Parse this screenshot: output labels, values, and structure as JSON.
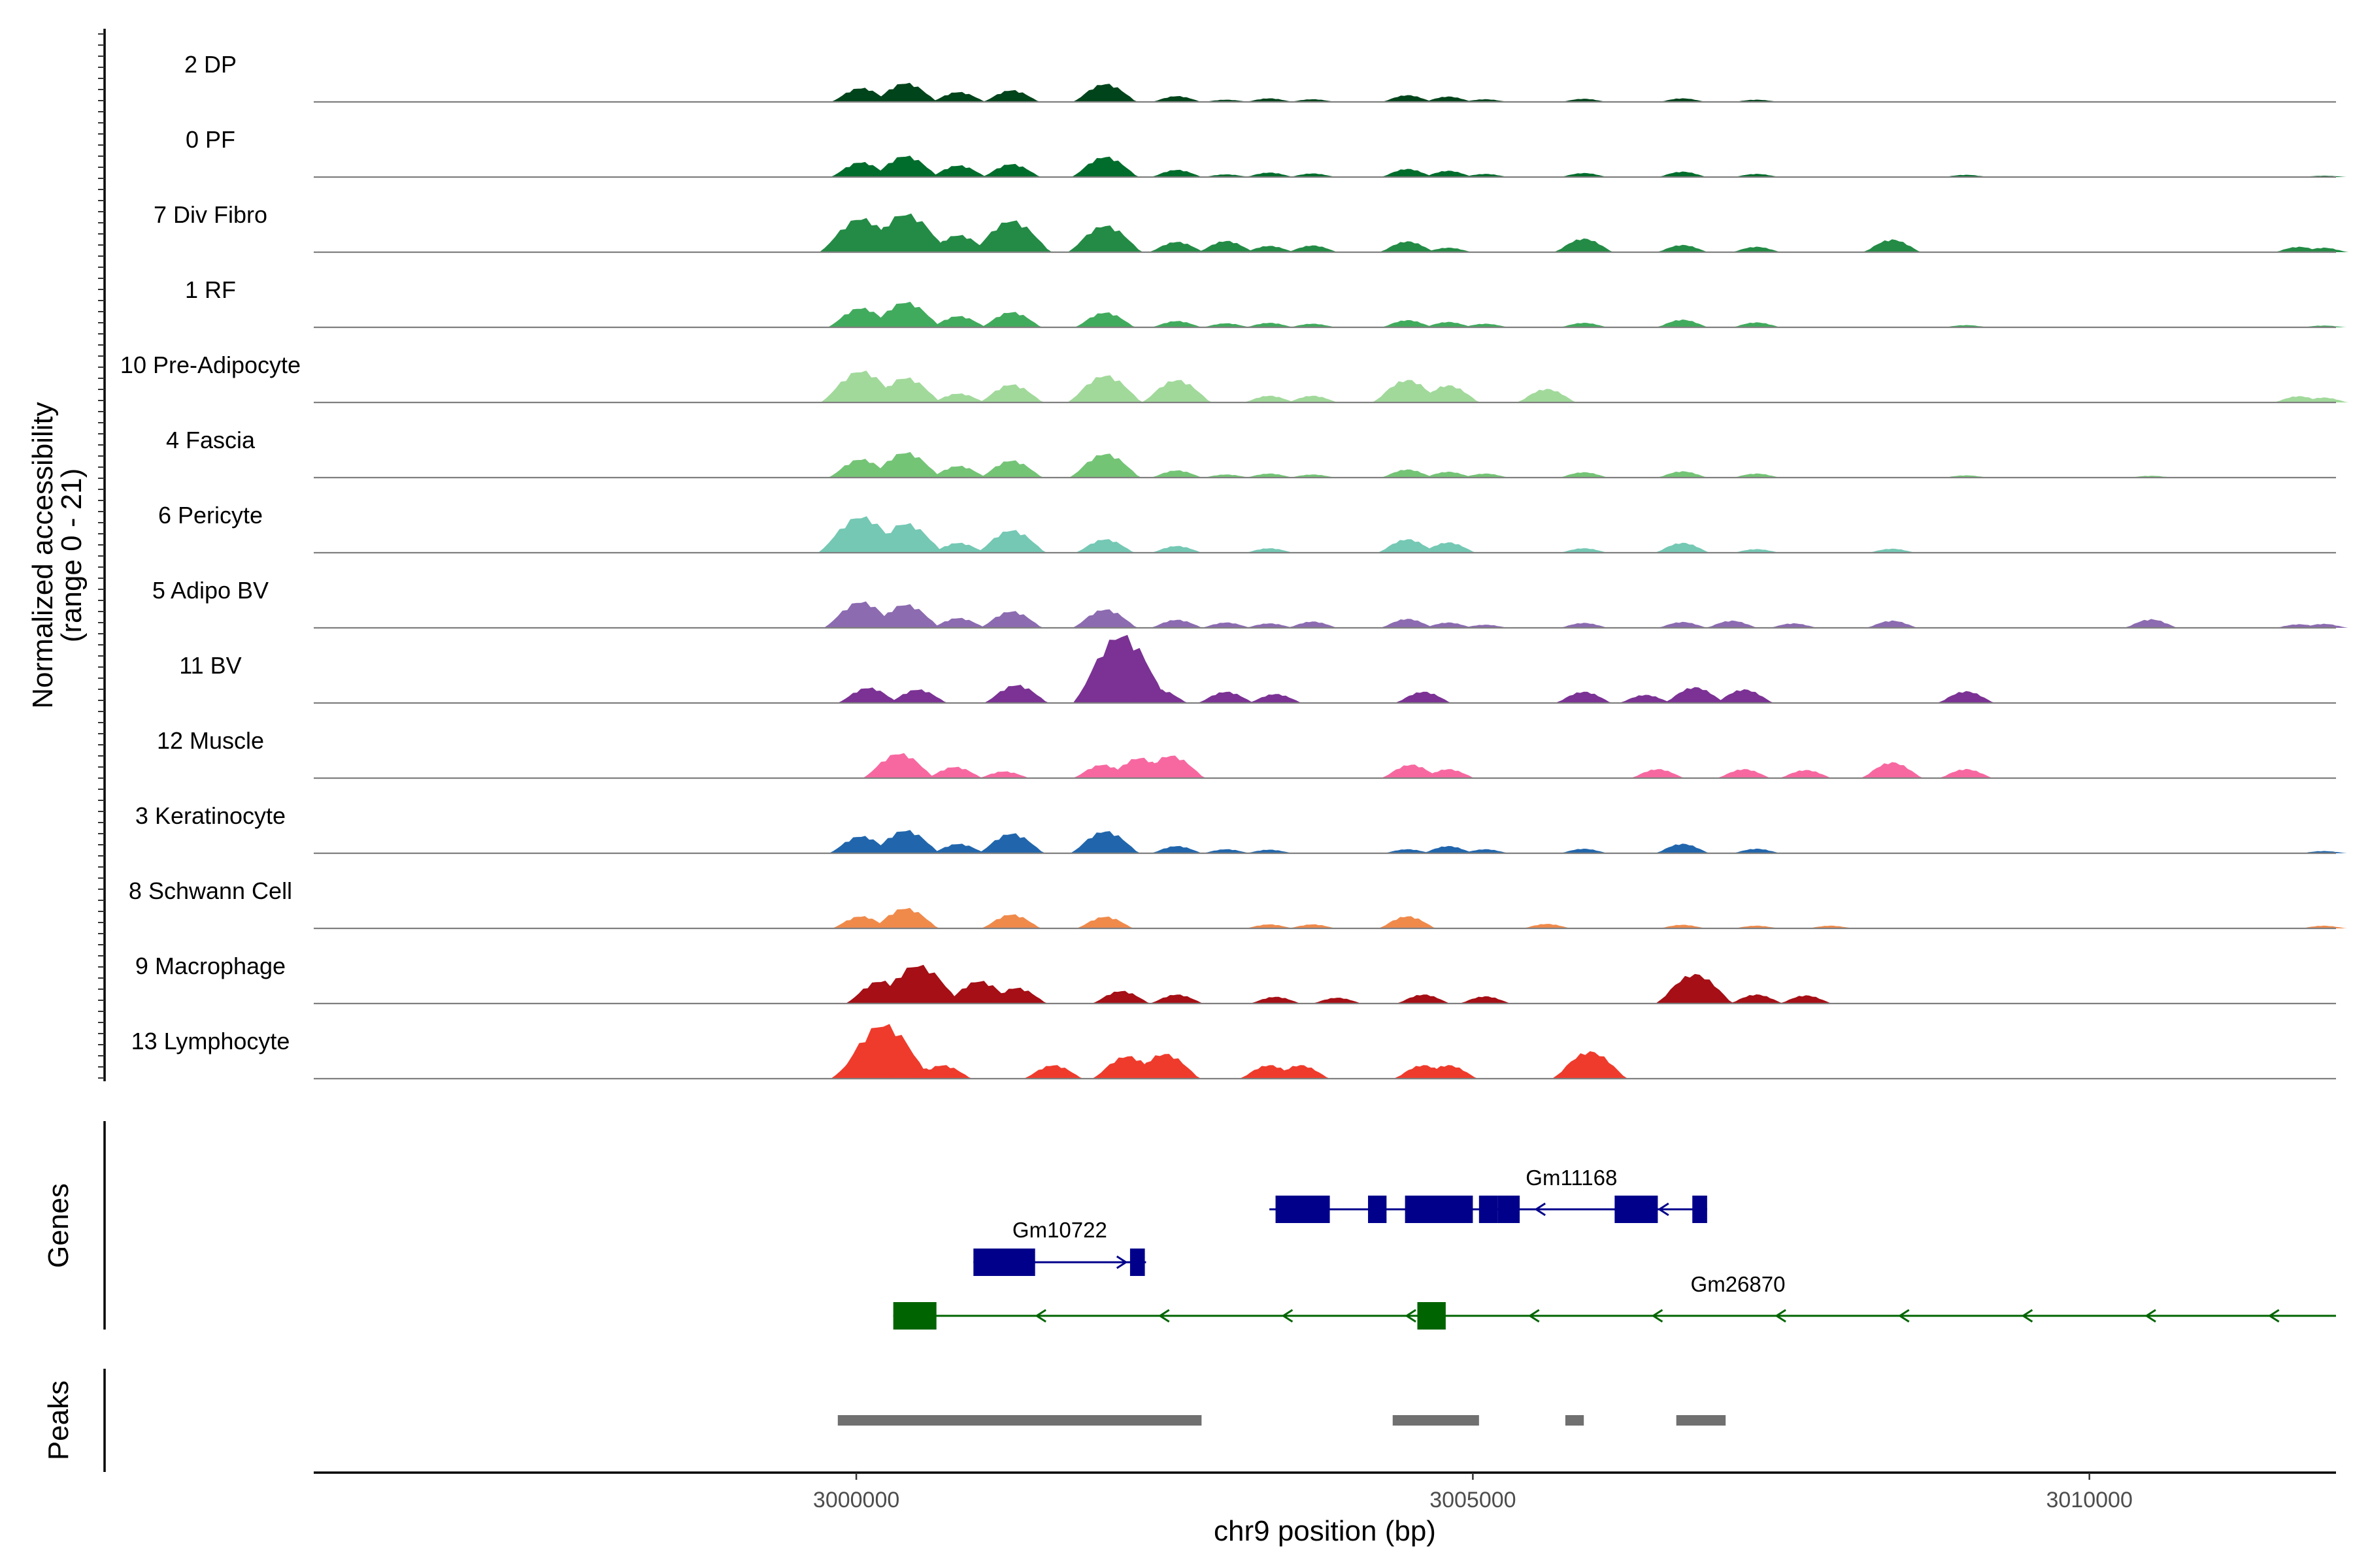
{
  "chart_data": {
    "type": "genome-coverage",
    "chromosome": "chr9",
    "xlabel": "chr9 position (bp)",
    "ylabel_line1": "Normalized accessibility",
    "ylabel_line2": "(range 0 - 21)",
    "y_range": [
      0,
      21
    ],
    "xlim": [
      2995600,
      3012000
    ],
    "x_ticks": [
      3000000,
      3005000,
      3010000
    ],
    "x_tick_labels": [
      "3000000",
      "3005000",
      "3010000"
    ],
    "coverage_tracks": [
      {
        "name": "2 DP",
        "color": "#00441b",
        "peaks": [
          [
            3000040,
            3.1
          ],
          [
            3000400,
            4.2
          ],
          [
            3000830,
            2.2
          ],
          [
            3001260,
            2.6
          ],
          [
            3002020,
            4.0
          ],
          [
            3002600,
            1.3
          ],
          [
            3003000,
            0.5
          ],
          [
            3003350,
            0.8
          ],
          [
            3003700,
            0.6
          ],
          [
            3004470,
            1.5
          ],
          [
            3004800,
            1.2
          ],
          [
            3005100,
            0.6
          ],
          [
            3005900,
            0.7
          ],
          [
            3006700,
            0.8
          ],
          [
            3007300,
            0.5
          ]
        ]
      },
      {
        "name": "0 PF",
        "color": "#006d2c",
        "peaks": [
          [
            3000040,
            3.3
          ],
          [
            3000400,
            4.7
          ],
          [
            3000830,
            2.6
          ],
          [
            3001260,
            2.9
          ],
          [
            3002020,
            4.5
          ],
          [
            3002600,
            1.6
          ],
          [
            3003000,
            0.6
          ],
          [
            3003350,
            1.0
          ],
          [
            3003700,
            0.8
          ],
          [
            3004470,
            1.8
          ],
          [
            3004800,
            1.4
          ],
          [
            3005100,
            0.7
          ],
          [
            3005900,
            0.9
          ],
          [
            3006700,
            1.2
          ],
          [
            3007300,
            0.7
          ],
          [
            3009000,
            0.5
          ],
          [
            3011900,
            0.3
          ]
        ]
      },
      {
        "name": "7 Div Fibro",
        "color": "#238b45",
        "peaks": [
          [
            3000040,
            7.5
          ],
          [
            3000400,
            8.5
          ],
          [
            3000830,
            3.8
          ],
          [
            3001260,
            7.0
          ],
          [
            3002020,
            5.9
          ],
          [
            3002600,
            2.3
          ],
          [
            3003000,
            2.5
          ],
          [
            3003350,
            1.4
          ],
          [
            3003700,
            1.5
          ],
          [
            3004470,
            2.4
          ],
          [
            3004800,
            1.0
          ],
          [
            3005900,
            3.0
          ],
          [
            3006700,
            1.6
          ],
          [
            3007300,
            1.2
          ],
          [
            3008400,
            2.8
          ],
          [
            3011700,
            1.2
          ],
          [
            3011900,
            1.0
          ]
        ]
      },
      {
        "name": "1 RF",
        "color": "#41ab5d",
        "peaks": [
          [
            3000040,
            4.3
          ],
          [
            3000400,
            5.6
          ],
          [
            3000830,
            2.5
          ],
          [
            3001260,
            3.4
          ],
          [
            3002020,
            3.3
          ],
          [
            3002600,
            1.4
          ],
          [
            3003000,
            0.9
          ],
          [
            3003350,
            1.0
          ],
          [
            3003700,
            0.8
          ],
          [
            3004470,
            1.6
          ],
          [
            3004800,
            1.2
          ],
          [
            3005100,
            0.8
          ],
          [
            3005900,
            1.0
          ],
          [
            3006700,
            1.7
          ],
          [
            3007300,
            1.1
          ],
          [
            3009000,
            0.5
          ],
          [
            3011900,
            0.4
          ]
        ]
      },
      {
        "name": "10 Pre-Adipocyte",
        "color": "#a1d99b",
        "peaks": [
          [
            3000040,
            7.0
          ],
          [
            3000400,
            5.5
          ],
          [
            3000830,
            2.0
          ],
          [
            3001260,
            4.0
          ],
          [
            3002020,
            6.0
          ],
          [
            3002600,
            5.0
          ],
          [
            3003350,
            1.5
          ],
          [
            3003700,
            1.5
          ],
          [
            3004470,
            5.0
          ],
          [
            3004800,
            3.8
          ],
          [
            3005600,
            3.0
          ],
          [
            3011700,
            1.4
          ],
          [
            3011900,
            1.1
          ]
        ]
      },
      {
        "name": "4 Fascia",
        "color": "#74c476",
        "peaks": [
          [
            3000040,
            4.1
          ],
          [
            3000400,
            5.6
          ],
          [
            3000830,
            2.6
          ],
          [
            3001260,
            3.8
          ],
          [
            3002020,
            5.3
          ],
          [
            3002600,
            1.6
          ],
          [
            3003000,
            0.7
          ],
          [
            3003350,
            0.9
          ],
          [
            3003700,
            0.7
          ],
          [
            3004470,
            1.8
          ],
          [
            3004800,
            1.3
          ],
          [
            3005100,
            0.9
          ],
          [
            3005900,
            1.2
          ],
          [
            3006700,
            1.4
          ],
          [
            3007300,
            0.9
          ],
          [
            3009000,
            0.5
          ],
          [
            3010500,
            0.4
          ]
        ]
      },
      {
        "name": "6 Pericyte",
        "color": "#74c8b4",
        "peaks": [
          [
            3000040,
            8.0
          ],
          [
            3000400,
            6.5
          ],
          [
            3000830,
            2.2
          ],
          [
            3001260,
            5.0
          ],
          [
            3002020,
            3.0
          ],
          [
            3002600,
            1.5
          ],
          [
            3003350,
            1.0
          ],
          [
            3004470,
            3.0
          ],
          [
            3004800,
            2.3
          ],
          [
            3005900,
            1.0
          ],
          [
            3006700,
            2.2
          ],
          [
            3007300,
            0.8
          ],
          [
            3008400,
            0.9
          ]
        ]
      },
      {
        "name": "5 Adipo BV",
        "color": "#8c6bb1",
        "peaks": [
          [
            3000040,
            5.8
          ],
          [
            3000400,
            5.2
          ],
          [
            3000830,
            2.2
          ],
          [
            3001260,
            3.7
          ],
          [
            3002020,
            4.1
          ],
          [
            3002600,
            1.8
          ],
          [
            3003000,
            1.2
          ],
          [
            3003350,
            1.0
          ],
          [
            3003700,
            1.4
          ],
          [
            3004470,
            2.0
          ],
          [
            3004800,
            1.2
          ],
          [
            3005100,
            0.7
          ],
          [
            3005900,
            1.1
          ],
          [
            3006700,
            1.3
          ],
          [
            3007100,
            1.6
          ],
          [
            3007600,
            1.0
          ],
          [
            3008400,
            1.6
          ],
          [
            3010500,
            1.9
          ],
          [
            3011700,
            0.8
          ],
          [
            3011900,
            0.9
          ]
        ]
      },
      {
        "name": "11 BV",
        "color": "#7b3294",
        "peaks": [
          [
            3000100,
            3.4
          ],
          [
            3000500,
            3.0
          ],
          [
            3001300,
            4.0
          ],
          [
            3002150,
            15.0
          ],
          [
            3002450,
            3.0
          ],
          [
            3003000,
            2.5
          ],
          [
            3003400,
            2.0
          ],
          [
            3004600,
            2.5
          ],
          [
            3005900,
            2.5
          ],
          [
            3006400,
            1.8
          ],
          [
            3006800,
            3.5
          ],
          [
            3007200,
            3.0
          ],
          [
            3009000,
            2.6
          ]
        ]
      },
      {
        "name": "12 Muscle",
        "color": "#f768a1",
        "peaks": [
          [
            3000350,
            5.5
          ],
          [
            3000800,
            2.5
          ],
          [
            3001200,
            1.5
          ],
          [
            3002000,
            3.0
          ],
          [
            3002300,
            4.5
          ],
          [
            3002550,
            5.0
          ],
          [
            3004500,
            3.0
          ],
          [
            3004800,
            2.0
          ],
          [
            3006500,
            2.0
          ],
          [
            3007200,
            2.0
          ],
          [
            3007700,
            1.8
          ],
          [
            3008400,
            3.5
          ],
          [
            3009000,
            2.0
          ]
        ]
      },
      {
        "name": "3 Keratinocyte",
        "color": "#2166ac",
        "peaks": [
          [
            3000040,
            3.8
          ],
          [
            3000400,
            5.1
          ],
          [
            3000830,
            2.1
          ],
          [
            3001260,
            4.4
          ],
          [
            3002020,
            4.9
          ],
          [
            3002600,
            1.6
          ],
          [
            3003000,
            0.9
          ],
          [
            3003350,
            0.8
          ],
          [
            3004470,
            0.9
          ],
          [
            3004800,
            1.6
          ],
          [
            3005100,
            0.9
          ],
          [
            3005900,
            1.0
          ],
          [
            3006700,
            2.1
          ],
          [
            3007300,
            1.0
          ],
          [
            3011900,
            0.5
          ]
        ]
      },
      {
        "name": "8 Schwann Cell",
        "color": "#f08a4b",
        "peaks": [
          [
            3000040,
            2.7
          ],
          [
            3000400,
            4.5
          ],
          [
            3001260,
            3.1
          ],
          [
            3002020,
            2.6
          ],
          [
            3003350,
            0.9
          ],
          [
            3003700,
            0.9
          ],
          [
            3004470,
            2.7
          ],
          [
            3005600,
            1.0
          ],
          [
            3006700,
            0.8
          ],
          [
            3007300,
            0.6
          ],
          [
            3007900,
            0.6
          ],
          [
            3011900,
            0.6
          ]
        ]
      },
      {
        "name": "9 Macrophage",
        "color": "#a50f15",
        "peaks": [
          [
            3000200,
            5.0
          ],
          [
            3000500,
            8.5
          ],
          [
            3001000,
            5.0
          ],
          [
            3001300,
            3.5
          ],
          [
            3002150,
            2.8
          ],
          [
            3002600,
            2.0
          ],
          [
            3003400,
            1.5
          ],
          [
            3003900,
            1.3
          ],
          [
            3004600,
            2.0
          ],
          [
            3005100,
            1.6
          ],
          [
            3006800,
            6.5
          ],
          [
            3007300,
            2.0
          ],
          [
            3007700,
            1.8
          ]
        ]
      },
      {
        "name": "13 Lymphocyte",
        "color": "#ef3b2c",
        "peaks": [
          [
            3000100,
            6.0
          ],
          [
            3000220,
            12.0
          ],
          [
            3000480,
            2.8
          ],
          [
            3000700,
            3.0
          ],
          [
            3001600,
            3.0
          ],
          [
            3002200,
            5.0
          ],
          [
            3002500,
            5.5
          ],
          [
            3003350,
            3.0
          ],
          [
            3003600,
            3.0
          ],
          [
            3004600,
            3.0
          ],
          [
            3004800,
            3.0
          ],
          [
            3005950,
            6.0
          ]
        ]
      }
    ],
    "genes": [
      {
        "name": "Gm11168",
        "strand": "-",
        "color": "#00008b",
        "start": 3003350,
        "end": 3006900,
        "exons": [
          [
            3003400,
            3003840
          ],
          [
            3004150,
            3004300
          ],
          [
            3004450,
            3005000
          ],
          [
            3005050,
            3005200
          ],
          [
            3005200,
            3005380
          ],
          [
            3006150,
            3006500
          ],
          [
            3006780,
            3006900
          ]
        ]
      },
      {
        "name": "Gm10722",
        "strand": "+",
        "color": "#00008b",
        "start": 3000950,
        "end": 3002350,
        "exons": [
          [
            3000950,
            3001450
          ],
          [
            3002220,
            3002340
          ]
        ]
      },
      {
        "name": "Gm26870",
        "strand": "-",
        "color": "#006400",
        "start": 3000300,
        "end": 3012000,
        "exons": [
          [
            3000300,
            3000650
          ],
          [
            3004550,
            3004780
          ]
        ]
      }
    ],
    "peak_regions": [
      [
        2999850,
        3002800
      ],
      [
        3004350,
        3005050
      ],
      [
        3005750,
        3005900
      ],
      [
        3006650,
        3007050
      ]
    ],
    "genes_panel_label": "Genes",
    "peaks_panel_label": "Peaks"
  }
}
